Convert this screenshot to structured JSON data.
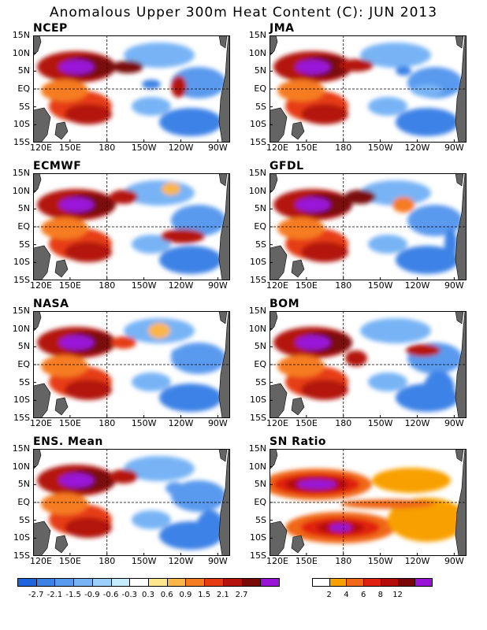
{
  "title": "Anomalous Upper 300m Heat Content (C): JUN 2013",
  "y_ticks": [
    "15N",
    "10N",
    "5N",
    "EQ",
    "5S",
    "10S",
    "15S"
  ],
  "x_ticks": [
    "120E",
    "150E",
    "180",
    "150W",
    "120W",
    "90W"
  ],
  "panels": [
    {
      "name": "NCEP"
    },
    {
      "name": "JMA"
    },
    {
      "name": "ECMWF"
    },
    {
      "name": "GFDL"
    },
    {
      "name": "NASA"
    },
    {
      "name": "BOM"
    },
    {
      "name": "ENS. Mean"
    },
    {
      "name": "SN Ratio"
    }
  ],
  "colorbar_anom": {
    "colors": [
      "#1e64dc",
      "#3c82e6",
      "#5a9aee",
      "#78b4f5",
      "#9ad0fa",
      "#c4ecfd",
      "#ffffff",
      "#fde68c",
      "#fbb64a",
      "#f67c24",
      "#e63c14",
      "#b4140c",
      "#7a0a08",
      "#9a14d8"
    ],
    "labels": [
      "-2.7",
      "-2.1",
      "-1.5",
      "-0.9",
      "-0.6",
      "-0.3",
      "0.3",
      "0.6",
      "0.9",
      "1.5",
      "2.1",
      "2.7"
    ]
  },
  "colorbar_snr": {
    "colors": [
      "#ffffff",
      "#f8a000",
      "#f06818",
      "#e02010",
      "#b40c0a",
      "#780606",
      "#9a14d8"
    ],
    "labels": [
      "2",
      "4",
      "6",
      "8",
      "12"
    ]
  },
  "land_color": "#646464"
}
